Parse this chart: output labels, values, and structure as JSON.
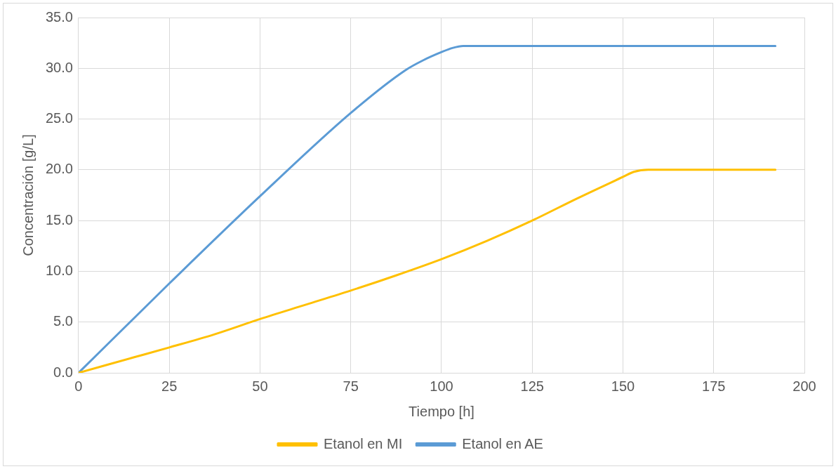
{
  "chart_data": {
    "type": "line",
    "xlabel": "Tiempo [h]",
    "ylabel": "Concentración [g/L]",
    "xlim": [
      0,
      200
    ],
    "xticks": [
      0,
      25,
      50,
      75,
      100,
      125,
      150,
      175,
      200
    ],
    "ylim": [
      0,
      35
    ],
    "yticks": [
      {
        "value": 0,
        "label": "0.0"
      },
      {
        "value": 5,
        "label": "5.0"
      },
      {
        "value": 10,
        "label": "10.0"
      },
      {
        "value": 15,
        "label": "15.0"
      },
      {
        "value": 20,
        "label": "20.0"
      },
      {
        "value": 25,
        "label": "25.0"
      },
      {
        "value": 30,
        "label": "30.0"
      },
      {
        "value": 35,
        "label": "35.0"
      }
    ],
    "grid": true,
    "legend": "bottom",
    "marker": "none",
    "line_style": "solid",
    "series": [
      {
        "name": "Etanol en MI",
        "color": "#ffc000",
        "x": [
          0,
          15,
          25,
          37.5,
          50,
          62.5,
          75,
          87.5,
          100,
          112.5,
          125,
          137.5,
          150,
          153,
          157,
          192
        ],
        "values": [
          0,
          1.5,
          2.5,
          3.8,
          5.3,
          6.7,
          8.1,
          9.6,
          11.2,
          13.0,
          15.0,
          17.2,
          19.3,
          19.8,
          20.0,
          20.0
        ]
      },
      {
        "name": "Etanol en AE",
        "color": "#5b9bd5",
        "x": [
          0,
          25,
          50,
          75,
          90,
          95,
          100,
          103,
          106,
          192
        ],
        "values": [
          0,
          8.8,
          17.4,
          25.6,
          29.8,
          30.8,
          31.6,
          32.0,
          32.2,
          32.2
        ]
      }
    ]
  }
}
